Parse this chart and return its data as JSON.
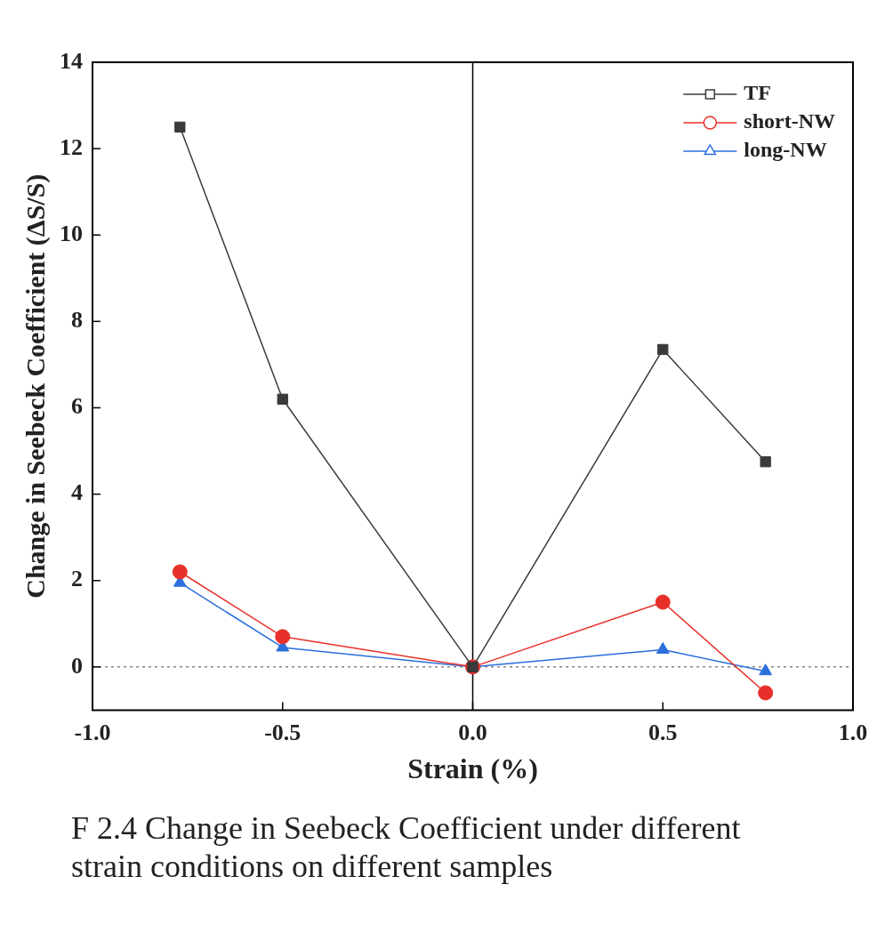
{
  "chart_data": {
    "type": "line",
    "xlabel": "Strain (%)",
    "ylabel": "Change in Seebeck Coefficient (ΔS/S)",
    "x": [
      -0.77,
      -0.5,
      0,
      0.5,
      0.77
    ],
    "series": [
      {
        "name": "TF",
        "color": "#3a3a3a",
        "marker": "square",
        "values": [
          12.5,
          6.2,
          0,
          7.35,
          4.75
        ]
      },
      {
        "name": "short-NW",
        "color": "#e8302a",
        "marker": "circle",
        "values": [
          2.2,
          0.7,
          0,
          1.5,
          -0.6
        ]
      },
      {
        "name": "long-NW",
        "color": "#2a6fdb",
        "marker": "triangle",
        "values": [
          1.95,
          0.45,
          0,
          0.4,
          -0.1
        ]
      }
    ],
    "xlim": [
      -1,
      1
    ],
    "xticks": [
      {
        "value": -1,
        "label": "-1.0"
      },
      -0.5,
      {
        "value": 0,
        "label": "0.0"
      },
      0.5,
      {
        "value": 1,
        "label": "1.0"
      }
    ],
    "ylim": [
      -1,
      14
    ],
    "yticks": [
      0,
      2,
      4,
      6,
      8,
      10,
      12,
      14
    ],
    "ref_lines": [
      {
        "axis": "x",
        "value": 0,
        "color": "#000000",
        "line_style": "solid"
      },
      {
        "axis": "y",
        "value": 0,
        "color": "#888888",
        "line_style": "dotted"
      }
    ],
    "legend": "top right",
    "grid": false,
    "line_style": "solid",
    "annotations": [
      "F 2.4 Change in Seebeck Coefficient under different strain conditions on different samples"
    ]
  }
}
